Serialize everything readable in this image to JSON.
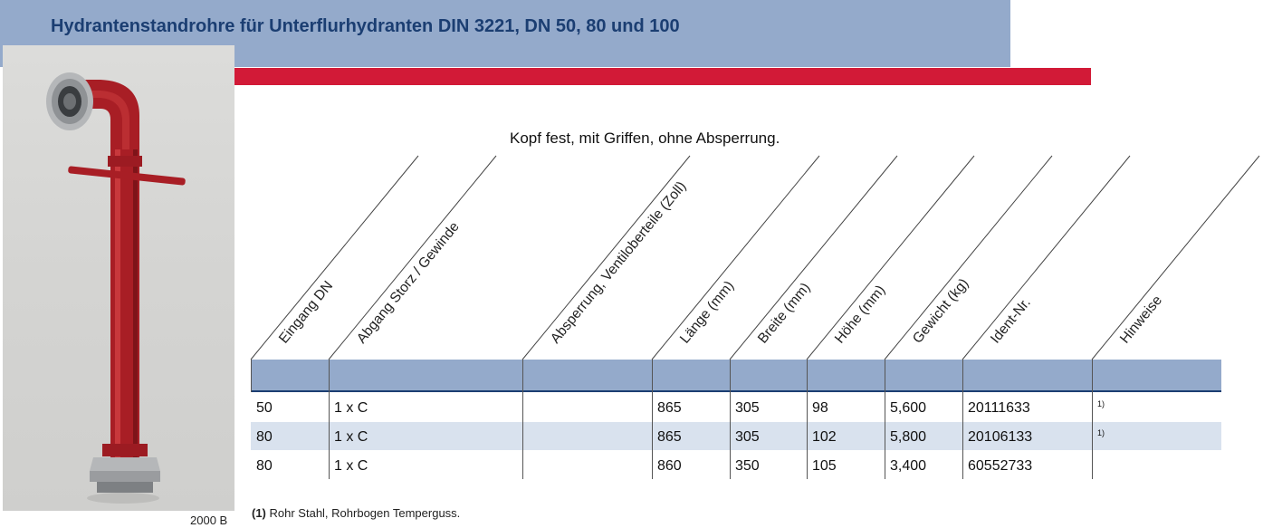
{
  "header": {
    "title": "Hydrantenstandrohre für Unterflurhydranten DIN 3221, DN 50, 80 und 100"
  },
  "photo": {
    "caption": "2000 B"
  },
  "subtitle": "Kopf fest, mit Griffen, ohne Absperrung.",
  "table": {
    "columns": [
      "Eingang DN",
      "Abgang Storz / Gewinde",
      "Absperrung, Ventiloberteile (Zoll)",
      "Länge (mm)",
      "Breite (mm)",
      "Höhe (mm)",
      "Gewicht (kg)",
      "Ident-Nr.",
      "Hinweise"
    ],
    "rows": [
      [
        "50",
        "1 x C",
        "",
        "865",
        "305",
        "98",
        "5,600",
        "20111633",
        "1)"
      ],
      [
        "80",
        "1 x C",
        "",
        "865",
        "305",
        "102",
        "5,800",
        "20106133",
        "1)"
      ],
      [
        "80",
        "1 x C",
        "",
        "860",
        "350",
        "105",
        "3,400",
        "60552733",
        ""
      ]
    ]
  },
  "footnote": {
    "marker": "(1)",
    "text": "Rohr Stahl, Rohrbogen Temperguss."
  },
  "colors": {
    "header_bg": "#94aacb",
    "header_text": "#1b3e72",
    "accent_red": "#d21a37",
    "row_shade": "#d9e2ee"
  }
}
